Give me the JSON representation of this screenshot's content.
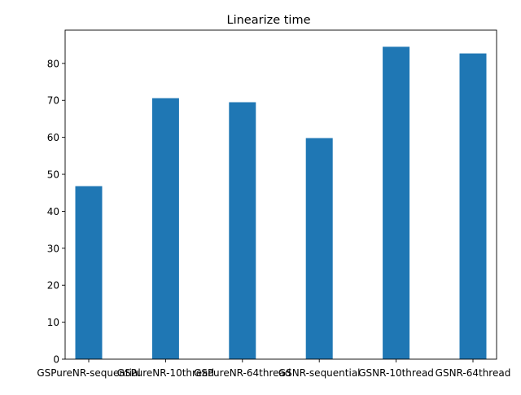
{
  "chart_data": {
    "type": "bar",
    "title": "Linearize time",
    "xlabel": "",
    "ylabel": "",
    "categories": [
      "GSPureNR-sequential",
      "GSPureNR-10thread",
      "GSPureNR-64thread",
      "GSNR-sequential",
      "GSNR-10thread",
      "GSNR-64thread"
    ],
    "values": [
      46.8,
      70.6,
      69.5,
      59.8,
      84.5,
      82.7
    ],
    "ylim": [
      0,
      89
    ],
    "yticks": [
      0,
      10,
      20,
      30,
      40,
      50,
      60,
      70,
      80
    ],
    "grid": false,
    "legend": "none",
    "bar_color": "#1f77b4"
  }
}
